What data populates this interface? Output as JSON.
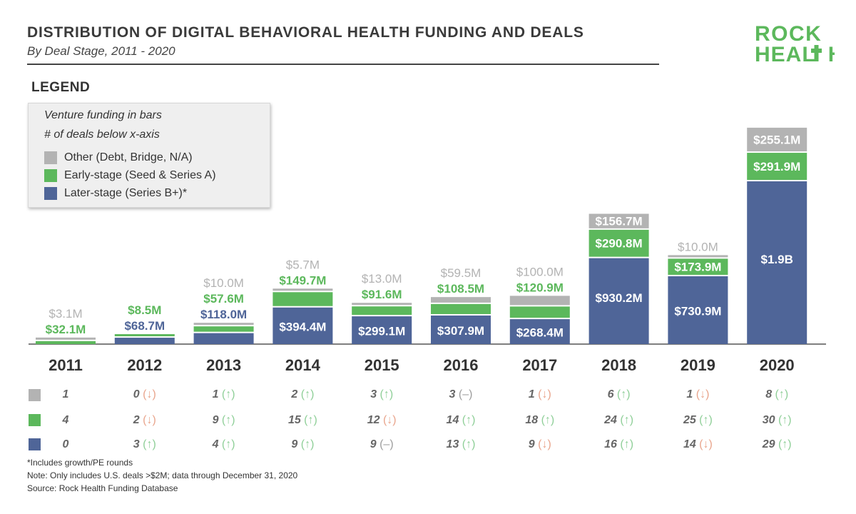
{
  "header": {
    "title": "DISTRIBUTION OF DIGITAL BEHAVIORAL HEALTH FUNDING AND DEALS",
    "subtitle": "By Deal Stage, 2011 - 2020"
  },
  "logo": {
    "line1": "ROCK",
    "line2_a": "HEAL",
    "line2_b": "H",
    "color": "#5cb85c"
  },
  "legend": {
    "heading": "LEGEND",
    "note1": "Venture funding in bars",
    "note2": "# of deals below x-axis",
    "items": [
      {
        "label": "Other (Debt, Bridge, N/A)",
        "color": "#b3b3b3"
      },
      {
        "label": "Early-stage (Seed & Series A)",
        "color": "#5cb85c"
      },
      {
        "label": "Later-stage (Series B+)*",
        "color": "#4f6598"
      }
    ]
  },
  "colors": {
    "other": "#b3b3b3",
    "early": "#5cb85c",
    "later": "#4f6598",
    "up": "#8fcf98",
    "down": "#e9a58d",
    "flat": "#9e9e9e"
  },
  "chart_data": {
    "type": "bar",
    "stacked": true,
    "categories": [
      "2011",
      "2012",
      "2013",
      "2014",
      "2015",
      "2016",
      "2017",
      "2018",
      "2019",
      "2020"
    ],
    "units": "USD millions",
    "series": [
      {
        "name": "Later-stage (Series B+)*",
        "values": [
          0,
          68.7,
          118.0,
          394.4,
          299.1,
          307.9,
          268.4,
          930.2,
          730.9,
          1900
        ],
        "labels": [
          "",
          "$68.7M",
          "$118.0M",
          "$394.4M",
          "$299.1M",
          "$307.9M",
          "$268.4M",
          "$930.2M",
          "$730.9M",
          "$1.9B"
        ]
      },
      {
        "name": "Early-stage (Seed & Series A)",
        "values": [
          32.1,
          8.5,
          57.6,
          149.7,
          91.6,
          108.5,
          120.9,
          290.8,
          173.9,
          291.9
        ],
        "labels": [
          "$32.1M",
          "$8.5M",
          "$57.6M",
          "$149.7M",
          "$91.6M",
          "$108.5M",
          "$120.9M",
          "$290.8M",
          "$173.9M",
          "$291.9M"
        ]
      },
      {
        "name": "Other (Debt, Bridge, N/A)",
        "values": [
          3.1,
          0,
          10.0,
          5.7,
          13.0,
          59.5,
          100.0,
          156.7,
          10.0,
          255.1
        ],
        "labels": [
          "$3.1M",
          "",
          "$10.0M",
          "$5.7M",
          "$13.0M",
          "$59.5M",
          "$100.0M",
          "$156.7M",
          "$10.0M",
          "$255.1M"
        ]
      }
    ],
    "deals": {
      "other": {
        "counts": [
          1,
          0,
          1,
          2,
          3,
          3,
          1,
          6,
          1,
          8
        ],
        "trend": [
          "",
          "down",
          "up",
          "up",
          "up",
          "flat",
          "down",
          "up",
          "down",
          "up"
        ]
      },
      "early": {
        "counts": [
          4,
          2,
          9,
          15,
          12,
          14,
          18,
          24,
          25,
          30
        ],
        "trend": [
          "",
          "down",
          "up",
          "up",
          "down",
          "up",
          "up",
          "up",
          "up",
          "up"
        ]
      },
      "later": {
        "counts": [
          0,
          3,
          4,
          9,
          9,
          13,
          9,
          16,
          14,
          29
        ],
        "trend": [
          "",
          "up",
          "up",
          "up",
          "flat",
          "up",
          "down",
          "up",
          "down",
          "up"
        ]
      }
    }
  },
  "footnotes": {
    "line1": "*Includes growth/PE rounds",
    "line2": "Note: Only includes U.S. deals >$2M; data through December 31, 2020",
    "line3": "Source: Rock Health Funding Database"
  }
}
